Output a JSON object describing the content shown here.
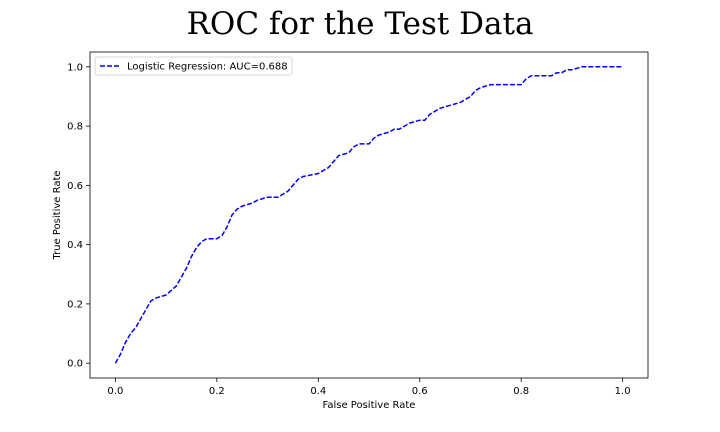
{
  "chart_data": {
    "type": "line",
    "title": "ROC for the Test Data",
    "xlabel": "False Positive Rate",
    "ylabel": "True Positive Rate",
    "xlim": [
      -0.05,
      1.05
    ],
    "ylim": [
      -0.05,
      1.05
    ],
    "xticks": [
      0.0,
      0.2,
      0.4,
      0.6,
      0.8,
      1.0
    ],
    "yticks": [
      0.0,
      0.2,
      0.4,
      0.6,
      0.8,
      1.0
    ],
    "xtick_labels": [
      "0.0",
      "0.2",
      "0.4",
      "0.6",
      "0.8",
      "1.0"
    ],
    "ytick_labels": [
      "0.0",
      "0.2",
      "0.4",
      "0.6",
      "0.8",
      "1.0"
    ],
    "grid": false,
    "legend_position": "top-left",
    "series": [
      {
        "name": "Logistic Regression: AUC=0.688",
        "color": "#0000ff",
        "line_style": "dashed",
        "x": [
          0.0,
          0.01,
          0.02,
          0.03,
          0.04,
          0.05,
          0.06,
          0.07,
          0.08,
          0.1,
          0.12,
          0.13,
          0.14,
          0.15,
          0.16,
          0.17,
          0.18,
          0.2,
          0.21,
          0.22,
          0.23,
          0.24,
          0.25,
          0.27,
          0.28,
          0.3,
          0.32,
          0.34,
          0.35,
          0.36,
          0.37,
          0.4,
          0.41,
          0.42,
          0.43,
          0.44,
          0.46,
          0.47,
          0.48,
          0.5,
          0.51,
          0.52,
          0.54,
          0.55,
          0.56,
          0.57,
          0.58,
          0.6,
          0.61,
          0.62,
          0.63,
          0.64,
          0.66,
          0.68,
          0.69,
          0.7,
          0.71,
          0.72,
          0.74,
          0.76,
          0.78,
          0.8,
          0.81,
          0.82,
          0.84,
          0.86,
          0.87,
          0.88,
          0.89,
          0.9,
          0.92,
          0.94,
          0.96,
          0.98,
          1.0
        ],
        "y": [
          0.0,
          0.03,
          0.07,
          0.1,
          0.12,
          0.15,
          0.18,
          0.21,
          0.22,
          0.23,
          0.26,
          0.29,
          0.32,
          0.36,
          0.39,
          0.41,
          0.42,
          0.42,
          0.43,
          0.46,
          0.5,
          0.52,
          0.53,
          0.54,
          0.55,
          0.56,
          0.56,
          0.58,
          0.6,
          0.62,
          0.63,
          0.64,
          0.65,
          0.66,
          0.68,
          0.7,
          0.71,
          0.73,
          0.74,
          0.74,
          0.76,
          0.77,
          0.78,
          0.79,
          0.79,
          0.8,
          0.81,
          0.82,
          0.82,
          0.84,
          0.85,
          0.86,
          0.87,
          0.88,
          0.89,
          0.9,
          0.92,
          0.93,
          0.94,
          0.94,
          0.94,
          0.94,
          0.96,
          0.97,
          0.97,
          0.97,
          0.98,
          0.98,
          0.99,
          0.99,
          1.0,
          1.0,
          1.0,
          1.0,
          1.0
        ]
      }
    ]
  }
}
